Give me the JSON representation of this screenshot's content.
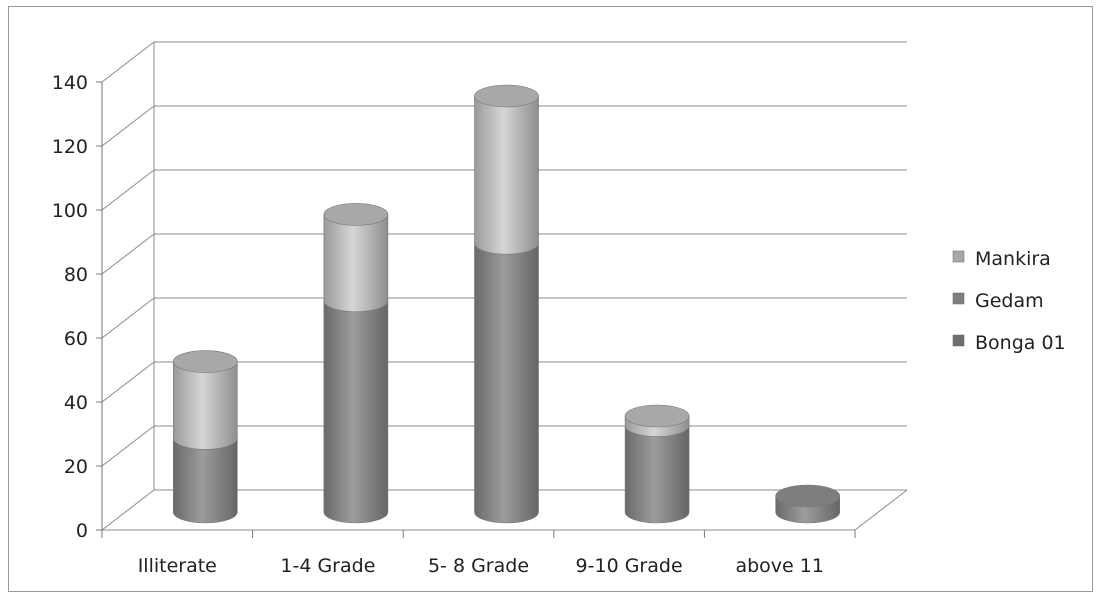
{
  "chart_data": {
    "type": "bar",
    "stacked": true,
    "style": "3d-cylinder",
    "categories": [
      "Illiterate",
      "1-4 Grade",
      "5- 8 Grade",
      "9-10 Grade",
      "above 11"
    ],
    "series": [
      {
        "name": "Bonga 01",
        "values": [
          0,
          0,
          0,
          0,
          0
        ]
      },
      {
        "name": "Gedam",
        "values": [
          23,
          66,
          84,
          27,
          5
        ]
      },
      {
        "name": "Mankira",
        "values": [
          24,
          27,
          46,
          3,
          0
        ]
      }
    ],
    "ylim": [
      0,
      140
    ],
    "yticks": [
      "0",
      "20",
      "40",
      "60",
      "80",
      "100",
      "120",
      "140"
    ],
    "grid": true,
    "legend_position": "right",
    "legend_order": [
      "Mankira",
      "Gedam",
      "Bonga 01"
    ],
    "colors": {
      "Mankira": "#b4b4b4",
      "Gedam": "#8a8a8a",
      "Bonga 01": "#7a7a7a",
      "grid": "#8c8c8c"
    }
  }
}
